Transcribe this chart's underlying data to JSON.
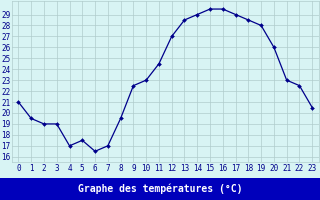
{
  "hours": [
    0,
    1,
    2,
    3,
    4,
    5,
    6,
    7,
    8,
    9,
    10,
    11,
    12,
    13,
    14,
    15,
    16,
    17,
    18,
    19,
    20,
    21,
    22,
    23
  ],
  "temperatures": [
    21.0,
    19.5,
    19.0,
    19.0,
    17.0,
    17.5,
    16.5,
    17.0,
    19.5,
    22.5,
    23.0,
    24.5,
    27.0,
    28.5,
    29.0,
    29.5,
    29.5,
    29.0,
    28.5,
    28.0,
    26.0,
    23.0,
    22.5,
    20.5
  ],
  "line_color": "#00008b",
  "marker_color": "#00008b",
  "bg_color": "#d8f4f4",
  "grid_color": "#b0cccc",
  "xlabel": "Graphe des températures (°C)",
  "ylabel_ticks": [
    16,
    17,
    18,
    19,
    20,
    21,
    22,
    23,
    24,
    25,
    26,
    27,
    28,
    29
  ],
  "ylim": [
    15.5,
    30.2
  ],
  "xlim": [
    -0.5,
    23.5
  ],
  "title_color": "#00008b",
  "xlabel_bg": "#0000bb",
  "xlabel_fg": "#ffffff",
  "tick_fontsize": 5.5,
  "label_fontsize": 7.0
}
